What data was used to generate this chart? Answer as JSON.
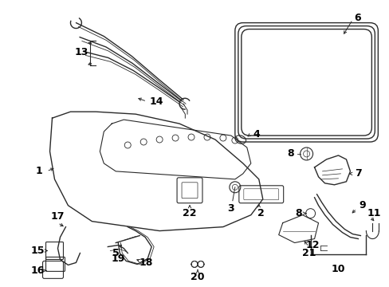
{
  "bg_color": "#ffffff",
  "line_color": "#2a2a2a",
  "label_color": "#000000",
  "font_size": 8.5,
  "figsize": [
    4.89,
    3.6
  ],
  "dpi": 100
}
